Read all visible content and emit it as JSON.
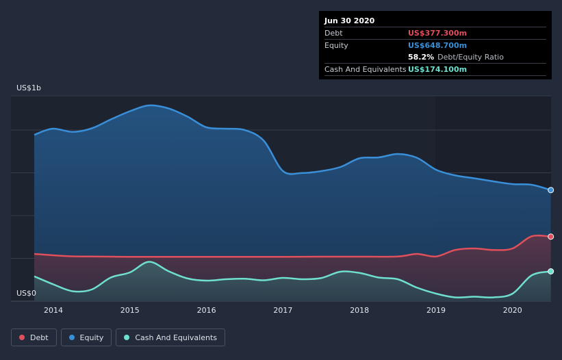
{
  "tooltip": {
    "date": "Jun 30 2020",
    "debt_label": "Debt",
    "debt_value": "US$377.300m",
    "equity_label": "Equity",
    "equity_value": "US$648.700m",
    "ratio_value": "58.2%",
    "ratio_label": "Debt/Equity Ratio",
    "cash_label": "Cash And Equivalents",
    "cash_value": "US$174.100m"
  },
  "legend": {
    "debt": "Debt",
    "equity": "Equity",
    "cash": "Cash And Equivalents"
  },
  "colors": {
    "debt": "#e0505c",
    "equity": "#3a8fd9",
    "cash": "#6fe0cf",
    "background": "#232b3a"
  },
  "chart_data": {
    "type": "area",
    "y_max_label": "US$1b",
    "y_min_label": "US$0",
    "ylim": [
      0,
      1200
    ],
    "xlim": [
      2013.5,
      2020.5
    ],
    "x_ticks": [
      2014,
      2015,
      2016,
      2017,
      2018,
      2019,
      2020
    ],
    "x_tick_labels": [
      "2014",
      "2015",
      "2016",
      "2017",
      "2018",
      "2019",
      "2020"
    ],
    "grid": true,
    "series": [
      {
        "name": "Equity",
        "key": "equity",
        "points": [
          [
            2013.75,
            972
          ],
          [
            2013.99,
            1008
          ],
          [
            2014.25,
            989
          ],
          [
            2014.5,
            1010
          ],
          [
            2014.75,
            1062
          ],
          [
            2015.0,
            1110
          ],
          [
            2015.25,
            1144
          ],
          [
            2015.5,
            1127
          ],
          [
            2015.75,
            1079
          ],
          [
            2016.0,
            1016
          ],
          [
            2016.25,
            1008
          ],
          [
            2016.5,
            1000
          ],
          [
            2016.75,
            937
          ],
          [
            2017.0,
            760
          ],
          [
            2017.25,
            749
          ],
          [
            2017.5,
            760
          ],
          [
            2017.75,
            784
          ],
          [
            2018.0,
            835
          ],
          [
            2018.25,
            840
          ],
          [
            2018.5,
            860
          ],
          [
            2018.75,
            838
          ],
          [
            2019.0,
            768
          ],
          [
            2019.25,
            735
          ],
          [
            2019.5,
            718
          ],
          [
            2019.75,
            700
          ],
          [
            2020.0,
            684
          ],
          [
            2020.25,
            680
          ],
          [
            2020.5,
            649
          ]
        ]
      },
      {
        "name": "Debt",
        "key": "debt",
        "points": [
          [
            2013.75,
            276
          ],
          [
            2014.0,
            268
          ],
          [
            2014.25,
            262
          ],
          [
            2014.5,
            261
          ],
          [
            2014.75,
            260
          ],
          [
            2015.0,
            259
          ],
          [
            2015.5,
            259
          ],
          [
            2016.0,
            259
          ],
          [
            2016.5,
            259
          ],
          [
            2017.0,
            259
          ],
          [
            2017.5,
            260
          ],
          [
            2018.0,
            260
          ],
          [
            2018.5,
            261
          ],
          [
            2018.75,
            276
          ],
          [
            2019.0,
            261
          ],
          [
            2019.25,
            299
          ],
          [
            2019.5,
            308
          ],
          [
            2019.75,
            299
          ],
          [
            2020.0,
            308
          ],
          [
            2020.25,
            379
          ],
          [
            2020.5,
            377
          ]
        ]
      },
      {
        "name": "Cash And Equivalents",
        "key": "cash",
        "points": [
          [
            2013.75,
            145
          ],
          [
            2014.0,
            98
          ],
          [
            2014.25,
            58
          ],
          [
            2014.5,
            68
          ],
          [
            2014.75,
            138
          ],
          [
            2015.0,
            168
          ],
          [
            2015.25,
            230
          ],
          [
            2015.5,
            176
          ],
          [
            2015.75,
            133
          ],
          [
            2016.0,
            120
          ],
          [
            2016.25,
            128
          ],
          [
            2016.5,
            131
          ],
          [
            2016.75,
            122
          ],
          [
            2017.0,
            136
          ],
          [
            2017.25,
            128
          ],
          [
            2017.5,
            135
          ],
          [
            2017.75,
            172
          ],
          [
            2018.0,
            165
          ],
          [
            2018.25,
            138
          ],
          [
            2018.5,
            128
          ],
          [
            2018.75,
            79
          ],
          [
            2019.0,
            44
          ],
          [
            2019.25,
            22
          ],
          [
            2019.5,
            26
          ],
          [
            2019.75,
            22
          ],
          [
            2020.0,
            44
          ],
          [
            2020.25,
            151
          ],
          [
            2020.5,
            174
          ]
        ]
      }
    ]
  }
}
